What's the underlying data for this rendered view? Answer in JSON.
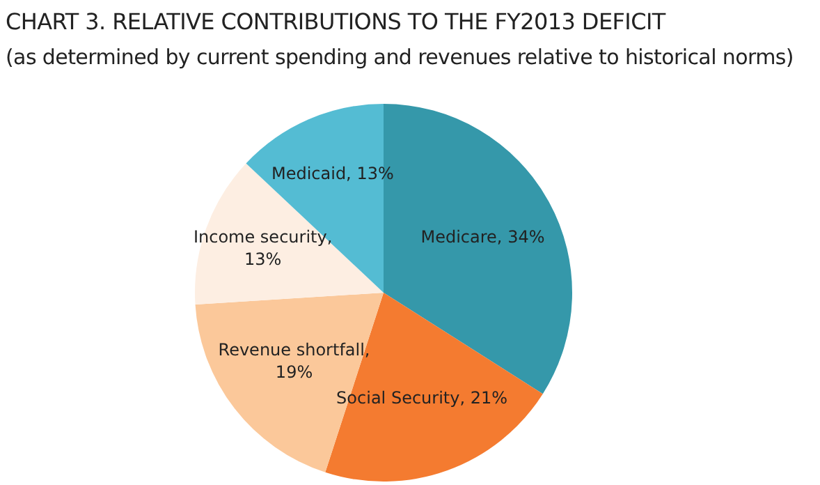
{
  "chart_data": {
    "type": "pie",
    "title": "CHART 3. RELATIVE CONTRIBUTIONS TO THE FY2013 DEFICIT",
    "subtitle": "(as determined by current spending and revenues relative to historical norms)",
    "categories": [
      "Medicare, 34%",
      "Social Security, 21%",
      "Revenue shortfall, 19%",
      "Income security, 13%",
      "Medicaid, 13%"
    ],
    "values": [
      34,
      21,
      19,
      13,
      13
    ],
    "colors": [
      "#3598aa",
      "#f47b30",
      "#fbc89a",
      "#fdeee2",
      "#54bcd3"
    ],
    "legend": false
  }
}
